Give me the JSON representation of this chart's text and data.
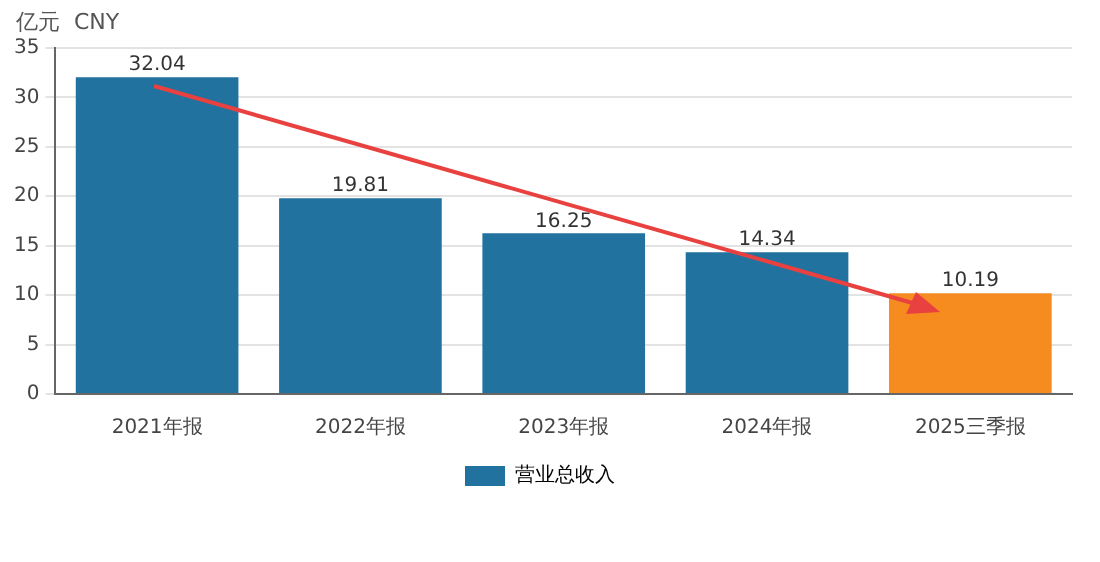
{
  "chart_data": {
    "type": "bar",
    "ylabel": "亿元  CNY",
    "categories": [
      "2021年报",
      "2022年报",
      "2023年报",
      "2024年报",
      "2025三季报"
    ],
    "series": [
      {
        "name": "营业总收入",
        "color": "#21729f",
        "colors": [
          "#21729f",
          "#21729f",
          "#21729f",
          "#21729f",
          "#f68b1f"
        ],
        "values": [
          32.04,
          19.81,
          16.25,
          14.34,
          10.19
        ]
      }
    ],
    "ylim": [
      0,
      35
    ],
    "yticks": [
      0,
      5,
      10,
      15,
      20,
      25,
      30,
      35
    ],
    "grid": "y",
    "legend": "bottom",
    "data_labels": true
  }
}
